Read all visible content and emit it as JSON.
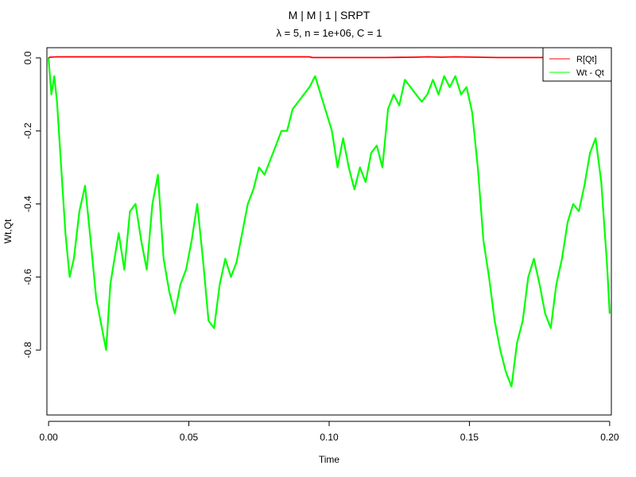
{
  "chart_data": {
    "type": "line",
    "title": "M | M | 1 | SRPT",
    "subtitle": "λ = 5, n = 1e+06, C = 1",
    "xlabel": "Time",
    "ylabel": "Wt,Qt",
    "xlim": [
      -0.0006,
      0.2006
    ],
    "ylim": [
      -0.978,
      0.028
    ],
    "xticks": [
      0.0,
      0.05,
      0.1,
      0.15,
      0.2
    ],
    "xtick_labels": [
      "0.00",
      "0.05",
      "0.10",
      "0.15",
      "0.20"
    ],
    "yticks": [
      0.0,
      -0.2,
      -0.4,
      -0.6,
      -0.8
    ],
    "ytick_labels": [
      "0.0",
      "-0.2",
      "-0.4",
      "-0.6",
      "-0.8"
    ],
    "grid": false,
    "legend_position": "top-right",
    "series": [
      {
        "name": "R[Qt]",
        "color": "#ff0000",
        "x": [
          0.0,
          0.0005,
          0.003,
          0.015,
          0.04,
          0.07,
          0.093,
          0.094,
          0.1,
          0.12,
          0.131,
          0.135,
          0.14,
          0.145,
          0.152,
          0.16,
          0.18,
          0.2
        ],
        "y": [
          0.0,
          0.002,
          0.003,
          0.003,
          0.003,
          0.003,
          0.003,
          0.001,
          0.001,
          0.001,
          0.002,
          0.003,
          0.002,
          0.003,
          0.002,
          0.001,
          0.001,
          0.001
        ]
      },
      {
        "name": "Wt - Qt",
        "color": "#00ff00",
        "x": [
          0.0,
          0.001,
          0.002,
          0.003,
          0.0045,
          0.006,
          0.0075,
          0.009,
          0.011,
          0.013,
          0.015,
          0.017,
          0.019,
          0.0205,
          0.022,
          0.0235,
          0.025,
          0.027,
          0.029,
          0.031,
          0.033,
          0.035,
          0.037,
          0.039,
          0.041,
          0.043,
          0.045,
          0.047,
          0.049,
          0.051,
          0.053,
          0.055,
          0.057,
          0.059,
          0.061,
          0.063,
          0.065,
          0.067,
          0.069,
          0.071,
          0.073,
          0.075,
          0.077,
          0.079,
          0.081,
          0.083,
          0.085,
          0.087,
          0.089,
          0.091,
          0.093,
          0.095,
          0.097,
          0.099,
          0.101,
          0.103,
          0.105,
          0.107,
          0.109,
          0.111,
          0.113,
          0.115,
          0.117,
          0.119,
          0.121,
          0.123,
          0.125,
          0.127,
          0.129,
          0.131,
          0.133,
          0.135,
          0.137,
          0.139,
          0.141,
          0.143,
          0.145,
          0.147,
          0.149,
          0.151,
          0.153,
          0.155,
          0.157,
          0.159,
          0.161,
          0.163,
          0.165,
          0.167,
          0.169,
          0.171,
          0.173,
          0.175,
          0.177,
          0.179,
          0.181,
          0.183,
          0.185,
          0.187,
          0.189,
          0.191,
          0.193,
          0.195,
          0.197,
          0.199,
          0.2
        ],
        "y": [
          0.0,
          -0.1,
          -0.05,
          -0.12,
          -0.3,
          -0.48,
          -0.6,
          -0.55,
          -0.42,
          -0.35,
          -0.5,
          -0.66,
          -0.74,
          -0.8,
          -0.62,
          -0.55,
          -0.48,
          -0.58,
          -0.42,
          -0.4,
          -0.5,
          -0.58,
          -0.4,
          -0.32,
          -0.55,
          -0.64,
          -0.7,
          -0.62,
          -0.58,
          -0.5,
          -0.4,
          -0.55,
          -0.72,
          -0.74,
          -0.62,
          -0.55,
          -0.6,
          -0.56,
          -0.48,
          -0.4,
          -0.36,
          -0.3,
          -0.32,
          -0.28,
          -0.24,
          -0.2,
          -0.2,
          -0.14,
          -0.12,
          -0.1,
          -0.08,
          -0.05,
          -0.1,
          -0.15,
          -0.2,
          -0.3,
          -0.22,
          -0.3,
          -0.36,
          -0.3,
          -0.34,
          -0.26,
          -0.24,
          -0.3,
          -0.14,
          -0.1,
          -0.13,
          -0.06,
          -0.08,
          -0.1,
          -0.12,
          -0.1,
          -0.06,
          -0.1,
          -0.05,
          -0.08,
          -0.05,
          -0.1,
          -0.08,
          -0.15,
          -0.3,
          -0.5,
          -0.6,
          -0.72,
          -0.8,
          -0.86,
          -0.9,
          -0.78,
          -0.72,
          -0.6,
          -0.55,
          -0.62,
          -0.7,
          -0.74,
          -0.62,
          -0.55,
          -0.45,
          -0.4,
          -0.42,
          -0.35,
          -0.26,
          -0.22,
          -0.34,
          -0.56,
          -0.7
        ]
      }
    ]
  }
}
